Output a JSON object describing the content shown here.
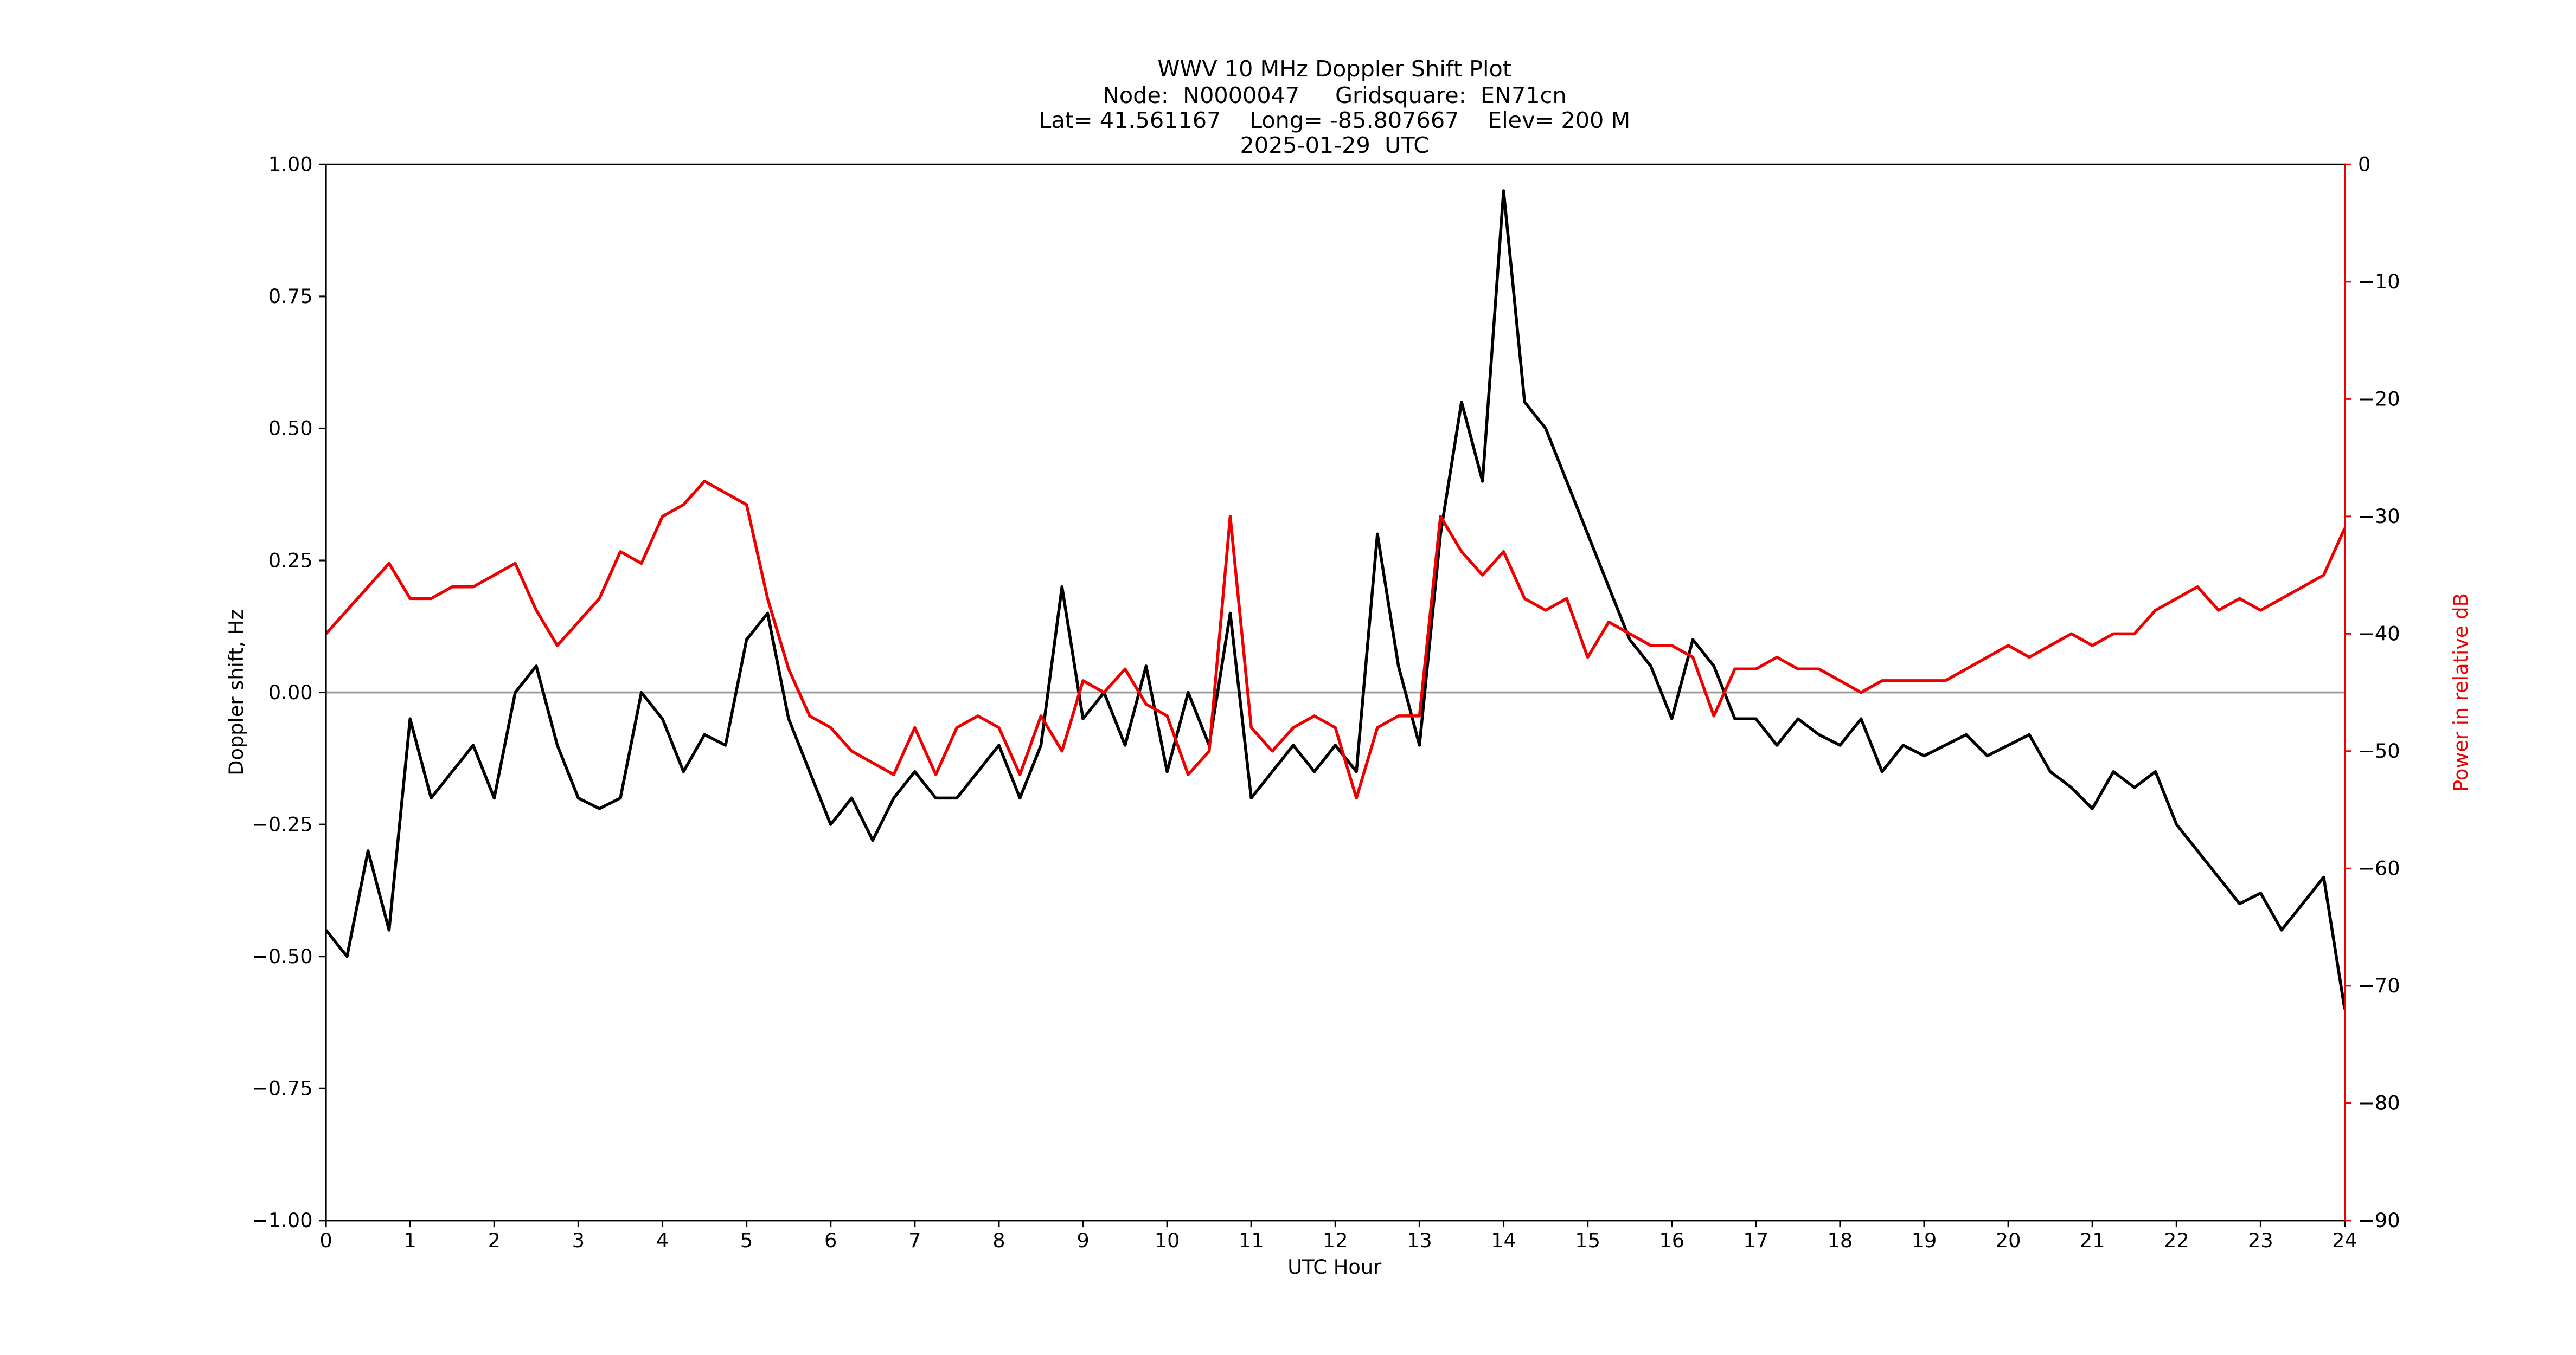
{
  "chart_data": {
    "type": "line",
    "title": [
      "WWV 10 MHz Doppler Shift Plot",
      "Node:  N0000047     Gridsquare:  EN71cn",
      "Lat= 41.561167    Long= -85.807667    Elev= 200 M",
      "2025-01-29  UTC"
    ],
    "x_label": "UTC Hour",
    "y_label": "Doppler shift, Hz",
    "y2_label": "Power in relative dB",
    "x": [
      0,
      0.25,
      0.5,
      0.75,
      1,
      1.25,
      1.5,
      1.75,
      2,
      2.25,
      2.5,
      2.75,
      3,
      3.25,
      3.5,
      3.75,
      4,
      4.25,
      4.5,
      4.75,
      5,
      5.25,
      5.5,
      5.75,
      6,
      6.25,
      6.5,
      6.75,
      7,
      7.25,
      7.5,
      7.75,
      8,
      8.25,
      8.5,
      8.75,
      9,
      9.25,
      9.5,
      9.75,
      10,
      10.25,
      10.5,
      10.75,
      11,
      11.25,
      11.5,
      11.75,
      12,
      12.25,
      12.5,
      12.75,
      13,
      13.25,
      13.5,
      13.75,
      14,
      14.25,
      14.5,
      14.75,
      15,
      15.25,
      15.5,
      15.75,
      16,
      16.25,
      16.5,
      16.75,
      17,
      17.25,
      17.5,
      17.75,
      18,
      18.25,
      18.5,
      18.75,
      19,
      19.25,
      19.5,
      19.75,
      20,
      20.25,
      20.5,
      20.75,
      21,
      21.25,
      21.5,
      21.75,
      22,
      22.25,
      22.5,
      22.75,
      23,
      23.25,
      23.5,
      23.75,
      24
    ],
    "series": [
      {
        "color": "#000000",
        "axis": "y",
        "values": [
          -0.45,
          -0.5,
          -0.3,
          -0.45,
          -0.05,
          -0.2,
          -0.15,
          -0.1,
          -0.2,
          0.0,
          0.05,
          -0.1,
          -0.2,
          -0.22,
          -0.2,
          0.0,
          -0.05,
          -0.15,
          -0.08,
          -0.1,
          0.1,
          0.15,
          -0.05,
          -0.15,
          -0.25,
          -0.2,
          -0.28,
          -0.2,
          -0.15,
          -0.2,
          -0.2,
          -0.15,
          -0.1,
          -0.2,
          -0.1,
          0.2,
          -0.05,
          0.0,
          -0.1,
          0.05,
          -0.15,
          0.0,
          -0.1,
          0.15,
          -0.2,
          -0.15,
          -0.1,
          -0.15,
          -0.1,
          -0.15,
          0.3,
          0.05,
          -0.1,
          0.3,
          0.55,
          0.4,
          0.95,
          0.55,
          0.5,
          0.4,
          0.3,
          0.2,
          0.1,
          0.05,
          -0.05,
          0.1,
          0.05,
          -0.05,
          -0.05,
          -0.1,
          -0.05,
          -0.08,
          -0.1,
          -0.05,
          -0.15,
          -0.1,
          -0.12,
          -0.1,
          -0.08,
          -0.12,
          -0.1,
          -0.08,
          -0.15,
          -0.18,
          -0.22,
          -0.15,
          -0.18,
          -0.15,
          -0.25,
          -0.3,
          -0.35,
          -0.4,
          -0.38,
          -0.45,
          -0.4,
          -0.35,
          -0.6
        ]
      },
      {
        "color": "#ee0000",
        "axis": "y2",
        "values": [
          -40,
          -38,
          -36,
          -34,
          -37,
          -37,
          -36,
          -36,
          -35,
          -34,
          -38,
          -41,
          -39,
          -37,
          -33,
          -34,
          -30,
          -29,
          -27,
          -28,
          -29,
          -37,
          -43,
          -47,
          -48,
          -50,
          -51,
          -52,
          -48,
          -52,
          -48,
          -47,
          -48,
          -52,
          -47,
          -50,
          -44,
          -45,
          -43,
          -46,
          -47,
          -52,
          -50,
          -30,
          -48,
          -50,
          -48,
          -47,
          -48,
          -54,
          -48,
          -47,
          -47,
          -30,
          -33,
          -35,
          -33,
          -37,
          -38,
          -37,
          -42,
          -39,
          -40,
          -41,
          -41,
          -42,
          -47,
          -43,
          -43,
          -42,
          -43,
          -43,
          -44,
          -45,
          -44,
          -44,
          -44,
          -44,
          -43,
          -42,
          -41,
          -42,
          -41,
          -40,
          -41,
          -40,
          -40,
          -38,
          -37,
          -36,
          -38,
          -37,
          -38,
          -37,
          -36,
          -35,
          -31
        ]
      }
    ],
    "hline": 0,
    "xlim": [
      0,
      24
    ],
    "xticks": [
      0,
      1,
      2,
      3,
      4,
      5,
      6,
      7,
      8,
      9,
      10,
      11,
      12,
      13,
      14,
      15,
      16,
      17,
      18,
      19,
      20,
      21,
      22,
      23,
      24
    ],
    "ylim": [
      -1,
      1
    ],
    "yticks": [
      {
        "value": -1,
        "label": "−1.00"
      },
      {
        "value": -0.75,
        "label": "−0.75"
      },
      {
        "value": -0.5,
        "label": "−0.50"
      },
      {
        "value": -0.25,
        "label": "−0.25"
      },
      {
        "value": 0,
        "label": "0.00"
      },
      {
        "value": 0.25,
        "label": "0.25"
      },
      {
        "value": 0.5,
        "label": "0.50"
      },
      {
        "value": 0.75,
        "label": "0.75"
      },
      {
        "value": 1,
        "label": "1.00"
      }
    ],
    "y2lim": [
      -90,
      0
    ],
    "y2ticks": [
      {
        "value": -90,
        "label": "−90"
      },
      {
        "value": -80,
        "label": "−80"
      },
      {
        "value": -70,
        "label": "−70"
      },
      {
        "value": -60,
        "label": "−60"
      },
      {
        "value": -50,
        "label": "−50"
      },
      {
        "value": -40,
        "label": "−40"
      },
      {
        "value": -30,
        "label": "−30"
      },
      {
        "value": -20,
        "label": "−20"
      },
      {
        "value": -10,
        "label": "−10"
      },
      0
    ],
    "y2color": "#ee0000"
  }
}
